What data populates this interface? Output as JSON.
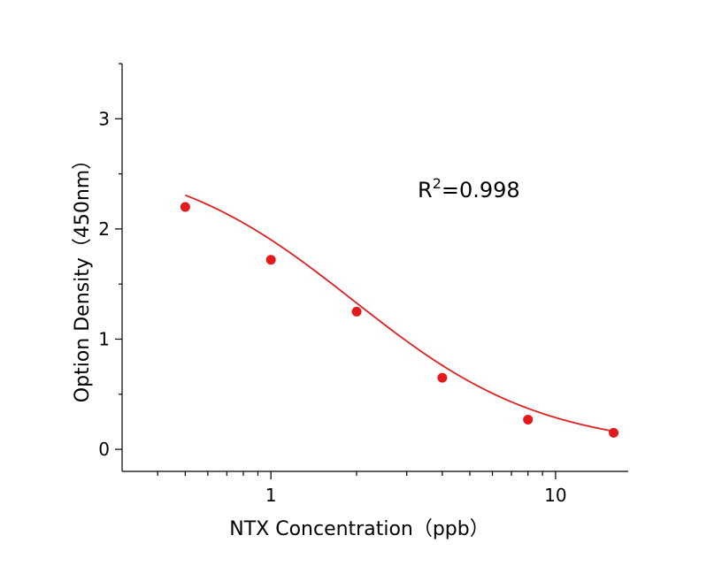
{
  "chart_data": {
    "type": "scatter",
    "x_scale": "log",
    "xlabel": "NTX Concentration（ppb）",
    "ylabel": "Option Density（450nm）",
    "xlim": [
      0.3,
      18
    ],
    "ylim": [
      -0.2,
      3.5
    ],
    "x_major_ticks": [
      1,
      10
    ],
    "x_tick_labels": [
      "1",
      "10"
    ],
    "y_ticks": [
      0,
      1,
      2,
      3
    ],
    "y_tick_labels": [
      "0",
      "1",
      "2",
      "3"
    ],
    "grid": false,
    "colors": {
      "points": "#e41a1a",
      "curve": "#e02020"
    },
    "annotation": {
      "base": "R",
      "sup": "2",
      "rest": "=0.998"
    },
    "series": [
      {
        "x": [
          0.5,
          1,
          2,
          4,
          8,
          16
        ],
        "y": [
          2.2,
          1.72,
          1.25,
          0.65,
          0.27,
          0.15
        ]
      }
    ],
    "fit_curve": {
      "model": "4PL",
      "x_range": [
        0.5,
        16
      ],
      "params": {
        "A": 0,
        "D": 2.7,
        "C": 1.95,
        "B": 1.3
      }
    }
  }
}
